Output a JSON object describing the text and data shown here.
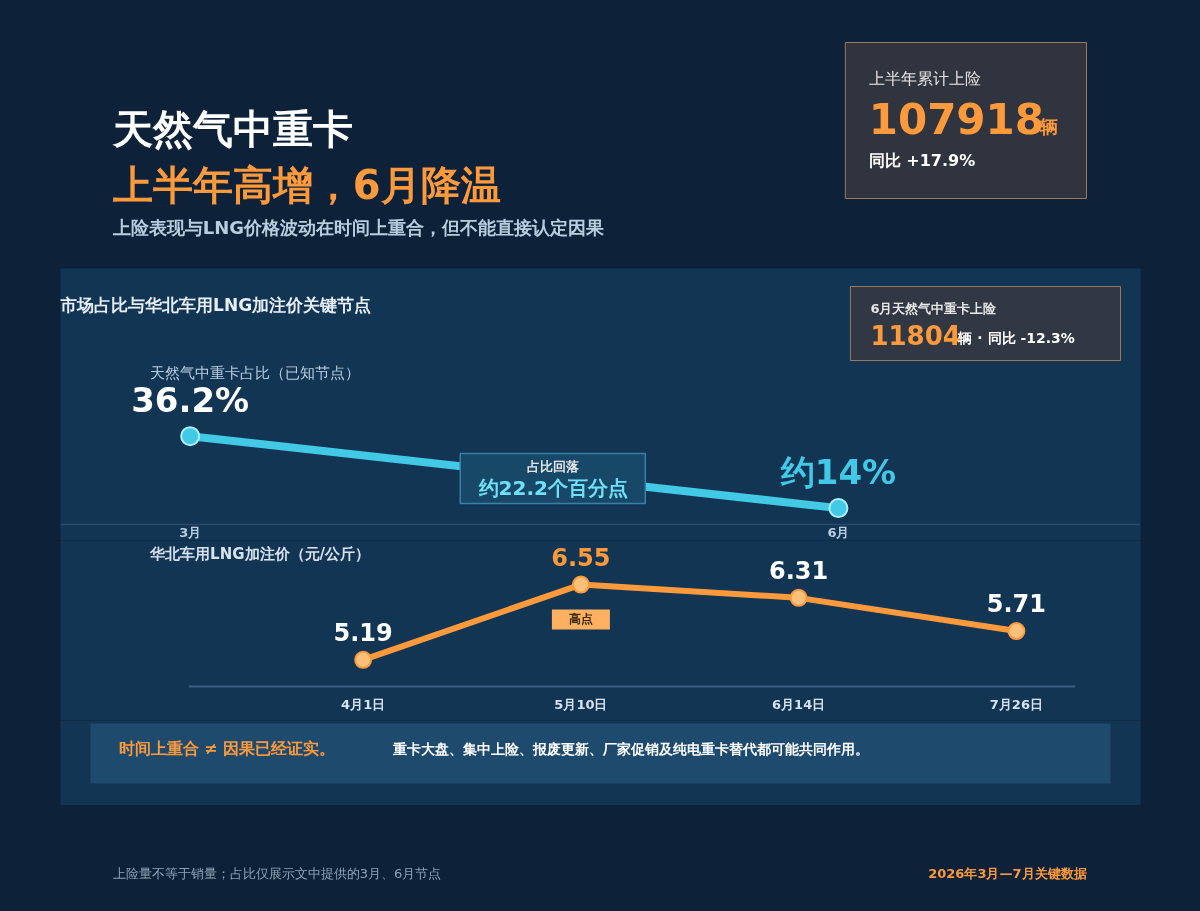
{
  "chart_data": [
    {
      "type": "other",
      "title": "天然气中重卡",
      "subtitle": "上半年高增，6月降温",
      "annotations": [
        "上险表现与LNG价格波动在时间上重合，但不能直接认定因果",
        "上半年累计上险",
        "107918",
        "辆",
        "同比 +17.9%"
      ]
    },
    {
      "type": "line",
      "title": "市场占比与华北车用LNG加注价关键节点",
      "categories": [
        "3月",
        "6月"
      ],
      "series": [
        {
          "name": "天然气中重卡占比（已知节点）",
          "color": "#41c9e6",
          "values": [
            36.2,
            14
          ],
          "value_labels": [
            "36.2%",
            "约14%"
          ]
        }
      ],
      "marker": "circle",
      "annotations": [
        "占比回落",
        "约22.2个百分点",
        "6月天然气中重卡上险",
        "11804",
        "辆 · 同比 -12.3%"
      ]
    },
    {
      "type": "line",
      "categories": [
        "4月1日",
        "5月10日",
        "6月14日",
        "7月26日"
      ],
      "series": [
        {
          "name": "华北车用LNG加注价（元/公斤）",
          "color": "#ff9a3c",
          "values": [
            5.19,
            6.55,
            6.31,
            5.71
          ]
        }
      ],
      "data_labels": true,
      "marker": "circle",
      "annotations": [
        {
          "text": "高点",
          "x": "5月10日",
          "y": 6.55
        },
        "时间上重合 ≠ 因果已经证实。",
        "重卡大盘、集中上险、报废更新、厂家促销及纯电重卡替代都可能共同作用。",
        "上险量不等于销量；占比仅展示文中提供的3月、6月节点",
        "2026年3月—7月关键数据"
      ]
    }
  ]
}
